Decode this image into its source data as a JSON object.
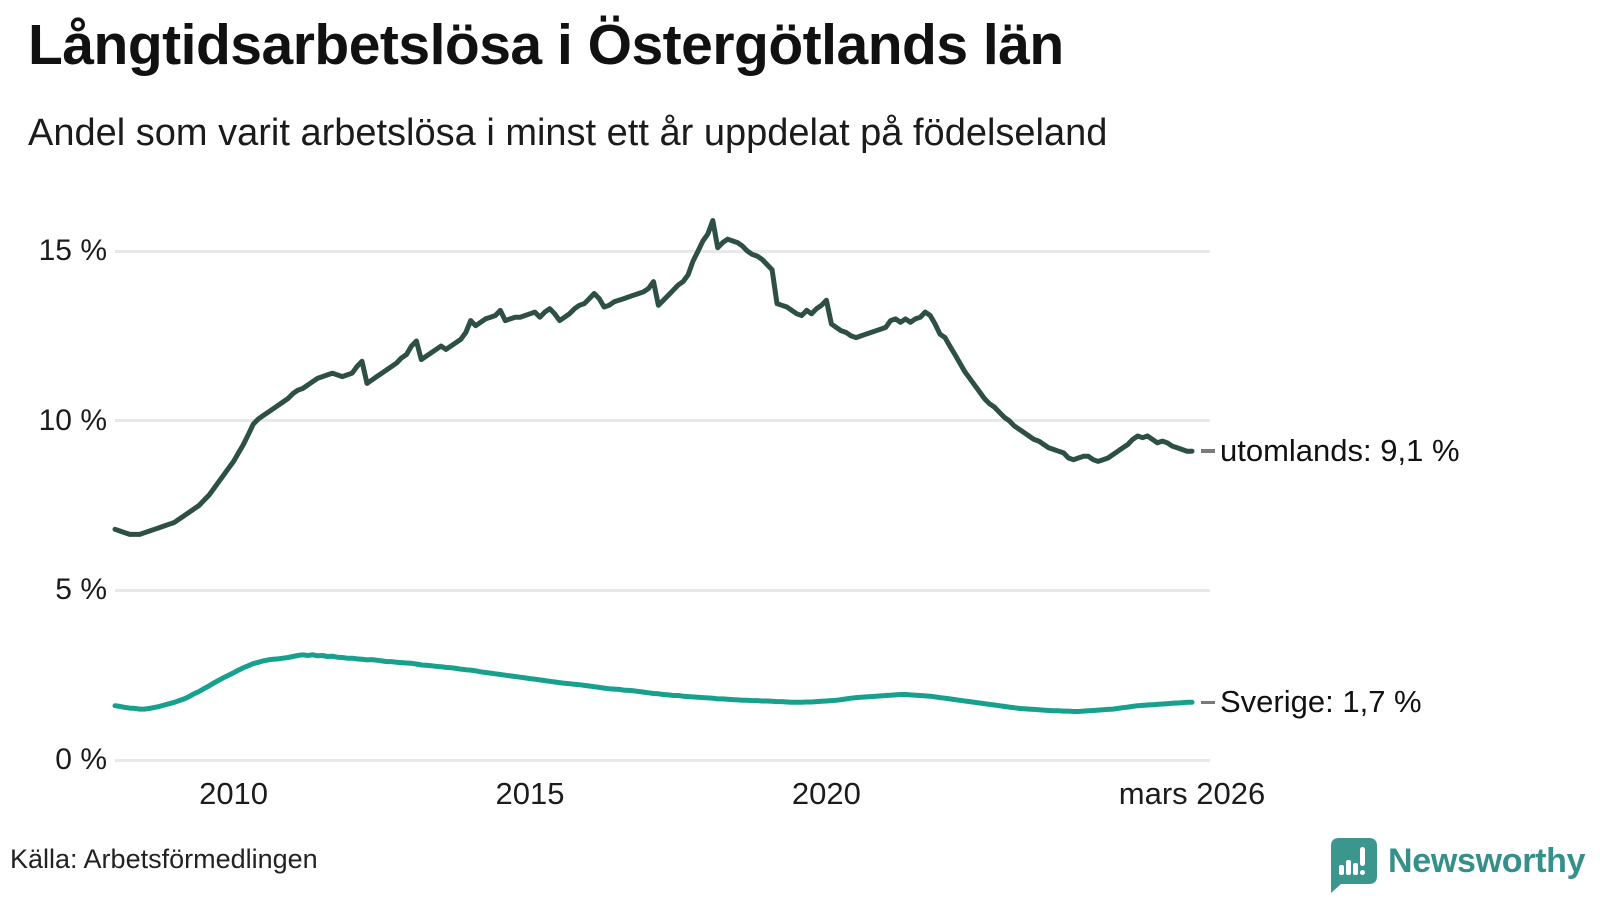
{
  "header": {
    "title": "Långtidsarbetslösa i Östergötlands län",
    "subtitle": "Andel som varit arbetslösa i minst ett år uppdelat på födelseland"
  },
  "chart": {
    "y_ticks": [
      {
        "label": "15 %",
        "value": 15
      },
      {
        "label": "10 %",
        "value": 10
      },
      {
        "label": "5 %",
        "value": 5
      },
      {
        "label": "0 %",
        "value": 0
      }
    ],
    "x_ticks": [
      {
        "label": "2010",
        "t": 2010
      },
      {
        "label": "2015",
        "t": 2015
      },
      {
        "label": "2020",
        "t": 2020
      },
      {
        "label": "mars 2026",
        "t": 2026.167
      }
    ],
    "colors": {
      "utomlands_line": "#2d4f45",
      "sverige_line": "#17a08d",
      "gridline": "#e8e8eb",
      "connector_dash": "#7a7a7a",
      "brand_teal": "#35908a"
    }
  },
  "chart_data": {
    "type": "line",
    "title": "Långtidsarbetslösa i Östergötlands län",
    "subtitle": "Andel som varit arbetslösa i minst ett år uppdelat på födelseland",
    "unit": "%",
    "frequency": "monthly",
    "x_start": "2008-01",
    "x_end": "2026-03",
    "x_tick_labels": [
      "2010",
      "2015",
      "2020",
      "mars 2026"
    ],
    "y_tick_labels": [
      "0 %",
      "5 %",
      "10 %",
      "15 %"
    ],
    "ylim": [
      0,
      16.6
    ],
    "grid": "horizontal-only",
    "legend_position": "end-of-line-labels",
    "series": [
      {
        "name": "utomlands",
        "end_label": "utomlands: 9,1 %",
        "last_value": 9.1,
        "color": "#2d4f45",
        "values": [
          6.8,
          6.75,
          6.7,
          6.65,
          6.65,
          6.65,
          6.7,
          6.75,
          6.8,
          6.85,
          6.9,
          6.95,
          7.0,
          7.1,
          7.2,
          7.3,
          7.4,
          7.5,
          7.65,
          7.8,
          8.0,
          8.2,
          8.4,
          8.6,
          8.8,
          9.05,
          9.3,
          9.6,
          9.9,
          10.05,
          10.15,
          10.25,
          10.35,
          10.45,
          10.55,
          10.65,
          10.8,
          10.9,
          10.95,
          11.05,
          11.15,
          11.25,
          11.3,
          11.35,
          11.4,
          11.35,
          11.3,
          11.35,
          11.4,
          11.6,
          11.75,
          11.1,
          11.2,
          11.3,
          11.4,
          11.5,
          11.6,
          11.7,
          11.85,
          11.95,
          12.2,
          12.35,
          11.8,
          11.9,
          12.0,
          12.1,
          12.2,
          12.1,
          12.2,
          12.3,
          12.4,
          12.6,
          12.95,
          12.8,
          12.9,
          13.0,
          13.05,
          13.1,
          13.25,
          12.95,
          13.0,
          13.05,
          13.05,
          13.1,
          13.15,
          13.2,
          13.05,
          13.2,
          13.3,
          13.15,
          12.95,
          13.05,
          13.15,
          13.3,
          13.4,
          13.45,
          13.6,
          13.75,
          13.6,
          13.35,
          13.4,
          13.5,
          13.55,
          13.6,
          13.65,
          13.7,
          13.75,
          13.8,
          13.9,
          14.1,
          13.4,
          13.55,
          13.7,
          13.85,
          14.0,
          14.1,
          14.3,
          14.7,
          15.0,
          15.3,
          15.5,
          15.9,
          15.1,
          15.25,
          15.35,
          15.3,
          15.25,
          15.15,
          15.0,
          14.9,
          14.85,
          14.75,
          14.6,
          14.45,
          13.45,
          13.4,
          13.35,
          13.25,
          13.15,
          13.1,
          13.25,
          13.15,
          13.3,
          13.4,
          13.55,
          12.85,
          12.75,
          12.65,
          12.6,
          12.5,
          12.45,
          12.5,
          12.55,
          12.6,
          12.65,
          12.7,
          12.75,
          12.95,
          13.0,
          12.9,
          13.0,
          12.9,
          13.0,
          13.05,
          13.2,
          13.1,
          12.85,
          12.55,
          12.45,
          12.2,
          11.95,
          11.7,
          11.45,
          11.25,
          11.05,
          10.85,
          10.65,
          10.5,
          10.4,
          10.25,
          10.1,
          10.0,
          9.85,
          9.75,
          9.65,
          9.55,
          9.45,
          9.4,
          9.3,
          9.2,
          9.15,
          9.1,
          9.05,
          8.9,
          8.85,
          8.9,
          8.95,
          8.95,
          8.85,
          8.8,
          8.85,
          8.9,
          9.0,
          9.1,
          9.2,
          9.3,
          9.45,
          9.55,
          9.5,
          9.55,
          9.45,
          9.35,
          9.4,
          9.35,
          9.25,
          9.2,
          9.15,
          9.1,
          9.1
        ]
      },
      {
        "name": "Sverige",
        "end_label": "Sverige: 1,7 %",
        "last_value": 1.7,
        "color": "#17a08d",
        "values": [
          1.6,
          1.58,
          1.55,
          1.53,
          1.52,
          1.5,
          1.5,
          1.52,
          1.55,
          1.58,
          1.62,
          1.66,
          1.7,
          1.75,
          1.8,
          1.87,
          1.95,
          2.02,
          2.1,
          2.18,
          2.27,
          2.35,
          2.43,
          2.5,
          2.57,
          2.65,
          2.72,
          2.78,
          2.84,
          2.88,
          2.92,
          2.95,
          2.97,
          2.98,
          3.0,
          3.02,
          3.05,
          3.08,
          3.1,
          3.08,
          3.1,
          3.07,
          3.08,
          3.05,
          3.06,
          3.03,
          3.02,
          3.0,
          3.0,
          2.98,
          2.97,
          2.95,
          2.96,
          2.94,
          2.92,
          2.9,
          2.9,
          2.88,
          2.87,
          2.86,
          2.85,
          2.83,
          2.8,
          2.79,
          2.78,
          2.76,
          2.75,
          2.73,
          2.72,
          2.7,
          2.68,
          2.66,
          2.65,
          2.63,
          2.6,
          2.58,
          2.56,
          2.54,
          2.52,
          2.5,
          2.48,
          2.46,
          2.44,
          2.42,
          2.4,
          2.38,
          2.36,
          2.34,
          2.32,
          2.3,
          2.28,
          2.26,
          2.25,
          2.23,
          2.22,
          2.2,
          2.18,
          2.16,
          2.14,
          2.12,
          2.1,
          2.09,
          2.08,
          2.06,
          2.05,
          2.04,
          2.02,
          2.0,
          1.98,
          1.96,
          1.95,
          1.93,
          1.92,
          1.9,
          1.9,
          1.88,
          1.87,
          1.86,
          1.85,
          1.84,
          1.83,
          1.82,
          1.8,
          1.8,
          1.79,
          1.78,
          1.77,
          1.76,
          1.76,
          1.75,
          1.75,
          1.74,
          1.74,
          1.73,
          1.72,
          1.72,
          1.71,
          1.7,
          1.7,
          1.7,
          1.71,
          1.71,
          1.72,
          1.73,
          1.74,
          1.75,
          1.76,
          1.78,
          1.8,
          1.82,
          1.84,
          1.85,
          1.86,
          1.87,
          1.88,
          1.89,
          1.9,
          1.91,
          1.92,
          1.93,
          1.93,
          1.92,
          1.91,
          1.9,
          1.89,
          1.88,
          1.86,
          1.84,
          1.82,
          1.8,
          1.78,
          1.76,
          1.74,
          1.72,
          1.7,
          1.68,
          1.66,
          1.64,
          1.62,
          1.6,
          1.58,
          1.56,
          1.54,
          1.52,
          1.51,
          1.5,
          1.49,
          1.48,
          1.47,
          1.46,
          1.45,
          1.45,
          1.44,
          1.44,
          1.43,
          1.43,
          1.44,
          1.45,
          1.46,
          1.47,
          1.48,
          1.49,
          1.5,
          1.52,
          1.54,
          1.56,
          1.58,
          1.6,
          1.61,
          1.62,
          1.63,
          1.64,
          1.65,
          1.66,
          1.67,
          1.68,
          1.69,
          1.7,
          1.7
        ]
      }
    ]
  },
  "footer": {
    "source": "Källa: Arbetsförmedlingen",
    "brand": "Newsworthy"
  }
}
